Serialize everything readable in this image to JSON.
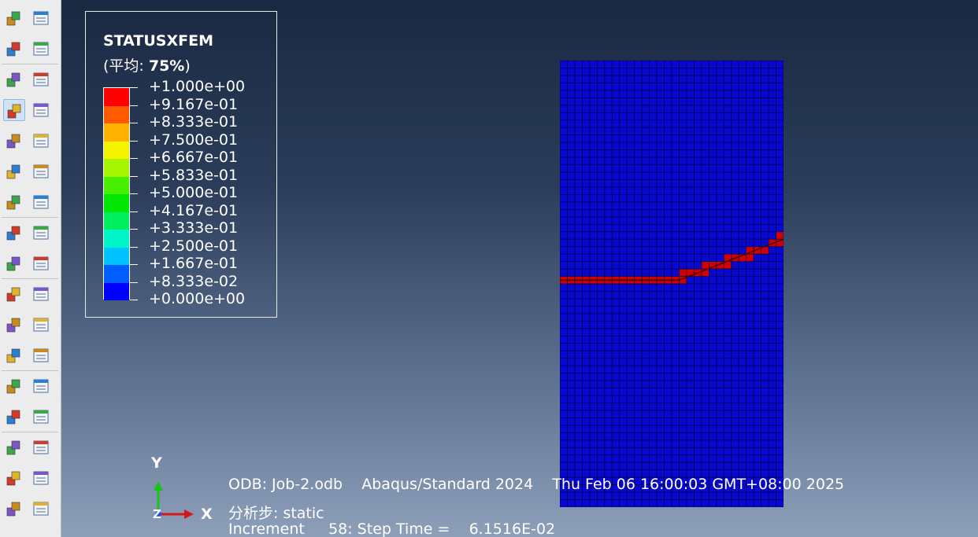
{
  "toolbar": {
    "rows": [
      {
        "left_icon": "ply-numbering-icon",
        "right_icon": "ply-stack-icon"
      },
      {
        "left_icon": "arrow-plot-icon",
        "right_icon": "contour-stack-icon"
      },
      {
        "left_icon": "undeformed-shape-icon",
        "right_icon": "deformed-shape-icon"
      },
      {
        "left_icon": "contour-plot-icon",
        "right_icon": "contour-options-icon"
      },
      {
        "left_icon": "symbol-plot-icon",
        "right_icon": "symbol-options-icon"
      },
      {
        "left_icon": "material-orientation-icon",
        "right_icon": "orientation-options-icon"
      },
      {
        "left_icon": "superimpose-icon",
        "right_icon": "superimpose-options-icon"
      },
      {
        "left_icon": "animate-scale-icon",
        "right_icon": "animate-time-icon"
      },
      {
        "left_icon": "animate-harmonic-icon",
        "right_icon": "animation-options-icon"
      },
      {
        "left_icon": "view-cut-icon",
        "right_icon": "view-cut-manager-icon"
      },
      {
        "left_icon": "xy-data-icon",
        "right_icon": "xy-data-manager-icon"
      },
      {
        "left_icon": "path-icon",
        "right_icon": "xy-plot-icon"
      },
      {
        "left_icon": "display-group-icon",
        "right_icon": "display-group-manager-icon"
      },
      {
        "left_icon": "overlay-plot-icon",
        "right_icon": "overlay-manager-icon"
      },
      {
        "left_icon": "query-icon",
        "right_icon": "query-manager-icon"
      },
      {
        "left_icon": "stream-icon",
        "right_icon": "stream-manager-icon"
      },
      {
        "left_icon": "create-field-output-icon",
        "right_icon": "field-output-manager-icon"
      }
    ],
    "active_row": 3
  },
  "legend": {
    "title": "STATUSXFEM",
    "subtitle_prefix": "(平均: ",
    "subtitle_value": "75%",
    "subtitle_suffix": ")",
    "colors": [
      "#ff0000",
      "#ff5a00",
      "#ffb300",
      "#f4f400",
      "#a7f500",
      "#46f000",
      "#00e600",
      "#00ee5e",
      "#00f5c6",
      "#00c2ff",
      "#005eff",
      "#0000ff"
    ],
    "labels": [
      "+1.000e+00",
      "+9.167e-01",
      "+8.333e-01",
      "+7.500e-01",
      "+6.667e-01",
      "+5.833e-01",
      "+5.000e-01",
      "+4.167e-01",
      "+3.333e-01",
      "+2.500e-01",
      "+1.667e-01",
      "+8.333e-02",
      "+0.000e+00"
    ]
  },
  "model": {
    "mesh_color": "#0808d0",
    "mesh_line_color": "#00004a",
    "crack_color": "#d40000",
    "columns": 30,
    "rows": 60
  },
  "triad": {
    "x": "X",
    "y": "Y",
    "z": "Z"
  },
  "info": {
    "odb_line": "ODB: Job-2.odb    Abaqus/Standard 2024    Thu Feb 06 16:00:03 GMT+08:00 2025",
    "step_line": "分析步: static",
    "increment_line": "Increment     58: Step Time =    6.1516E-02"
  }
}
